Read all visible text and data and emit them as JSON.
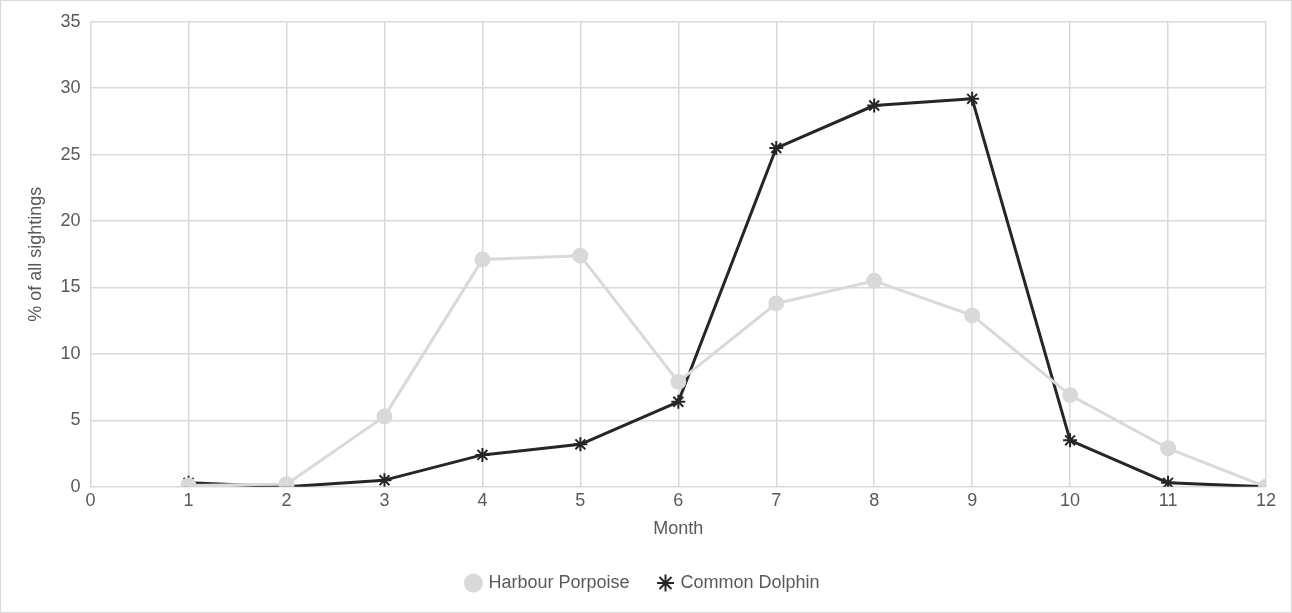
{
  "chart_data": {
    "type": "line",
    "xlabel": "Month",
    "ylabel": "% of all sightings",
    "x": [
      1,
      2,
      3,
      4,
      5,
      6,
      7,
      8,
      9,
      10,
      11,
      12
    ],
    "series": [
      {
        "name": "Common Dolphin",
        "color": "#262626",
        "marker": "cross",
        "values": [
          0.3,
          0,
          0.5,
          2.4,
          3.2,
          6.4,
          25.5,
          28.7,
          29.2,
          3.5,
          0.3,
          0
        ]
      },
      {
        "name": "Harbour Porpoise",
        "color": "#d9d9d9",
        "marker": "circle",
        "values": [
          0.1,
          0.2,
          5.3,
          17.1,
          17.4,
          7.9,
          13.8,
          15.5,
          12.9,
          6.9,
          2.9,
          0
        ]
      }
    ],
    "xlim": [
      0,
      12
    ],
    "xticks": [
      0,
      1,
      2,
      3,
      4,
      5,
      6,
      7,
      8,
      9,
      10,
      11,
      12
    ],
    "ylim": [
      0,
      35
    ],
    "yticks": [
      0,
      5,
      10,
      15,
      20,
      25,
      30,
      35
    ],
    "grid": true,
    "legend": "bottom",
    "line_style": "solid"
  }
}
